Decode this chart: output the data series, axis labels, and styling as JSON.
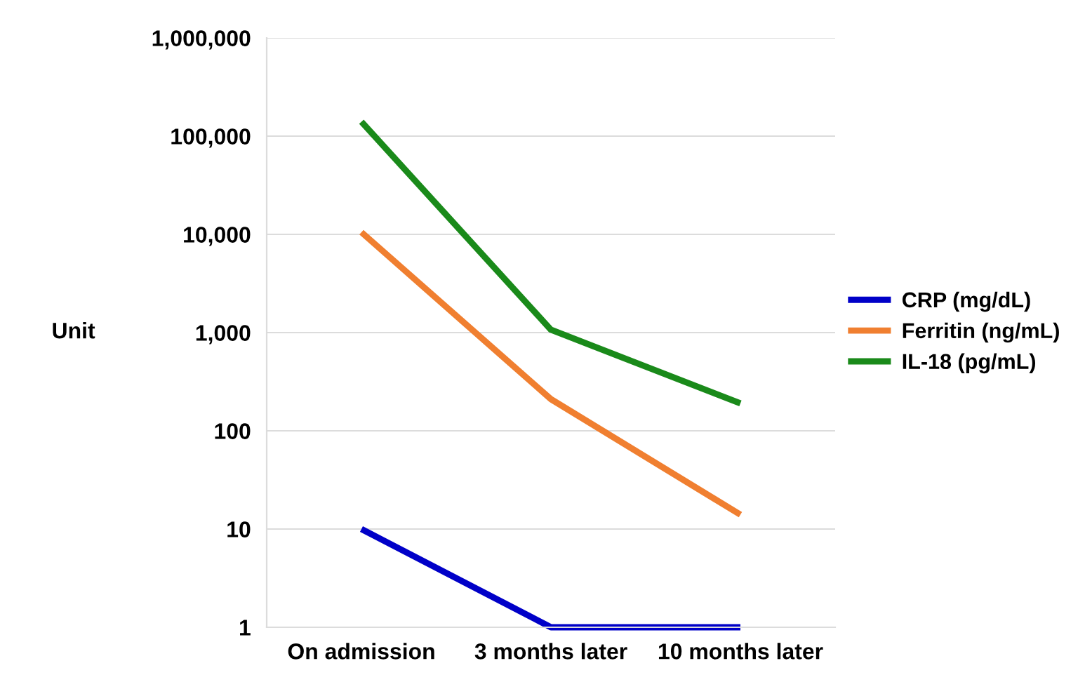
{
  "chart_data": {
    "type": "line",
    "ylabel": "Unit",
    "categories": [
      "On admission",
      "3 months later",
      "10 months later"
    ],
    "series": [
      {
        "name": "CRP (mg/dL)",
        "color": "#0000c8",
        "values": [
          10,
          1,
          1
        ]
      },
      {
        "name": "Ferritin (ng/mL)",
        "color": "#f07f30",
        "values": [
          10500,
          210,
          14
        ]
      },
      {
        "name": "IL-18 (pg/mL)",
        "color": "#1a8a1a",
        "values": [
          140000,
          1070,
          190
        ]
      }
    ],
    "log": "y",
    "ylim": [
      1,
      1000000
    ],
    "yticks": [
      {
        "value": 1,
        "label": "1"
      },
      {
        "value": 10,
        "label": "10"
      },
      {
        "value": 100,
        "label": "100"
      },
      {
        "value": 1000,
        "label": "1,000"
      },
      {
        "value": 10000,
        "label": "10,000"
      },
      {
        "value": 100000,
        "label": "100,000"
      },
      {
        "value": 1000000,
        "label": "1,000,000"
      }
    ],
    "grid": "y",
    "legend": "right",
    "marker": "none",
    "line_style": "solid"
  }
}
